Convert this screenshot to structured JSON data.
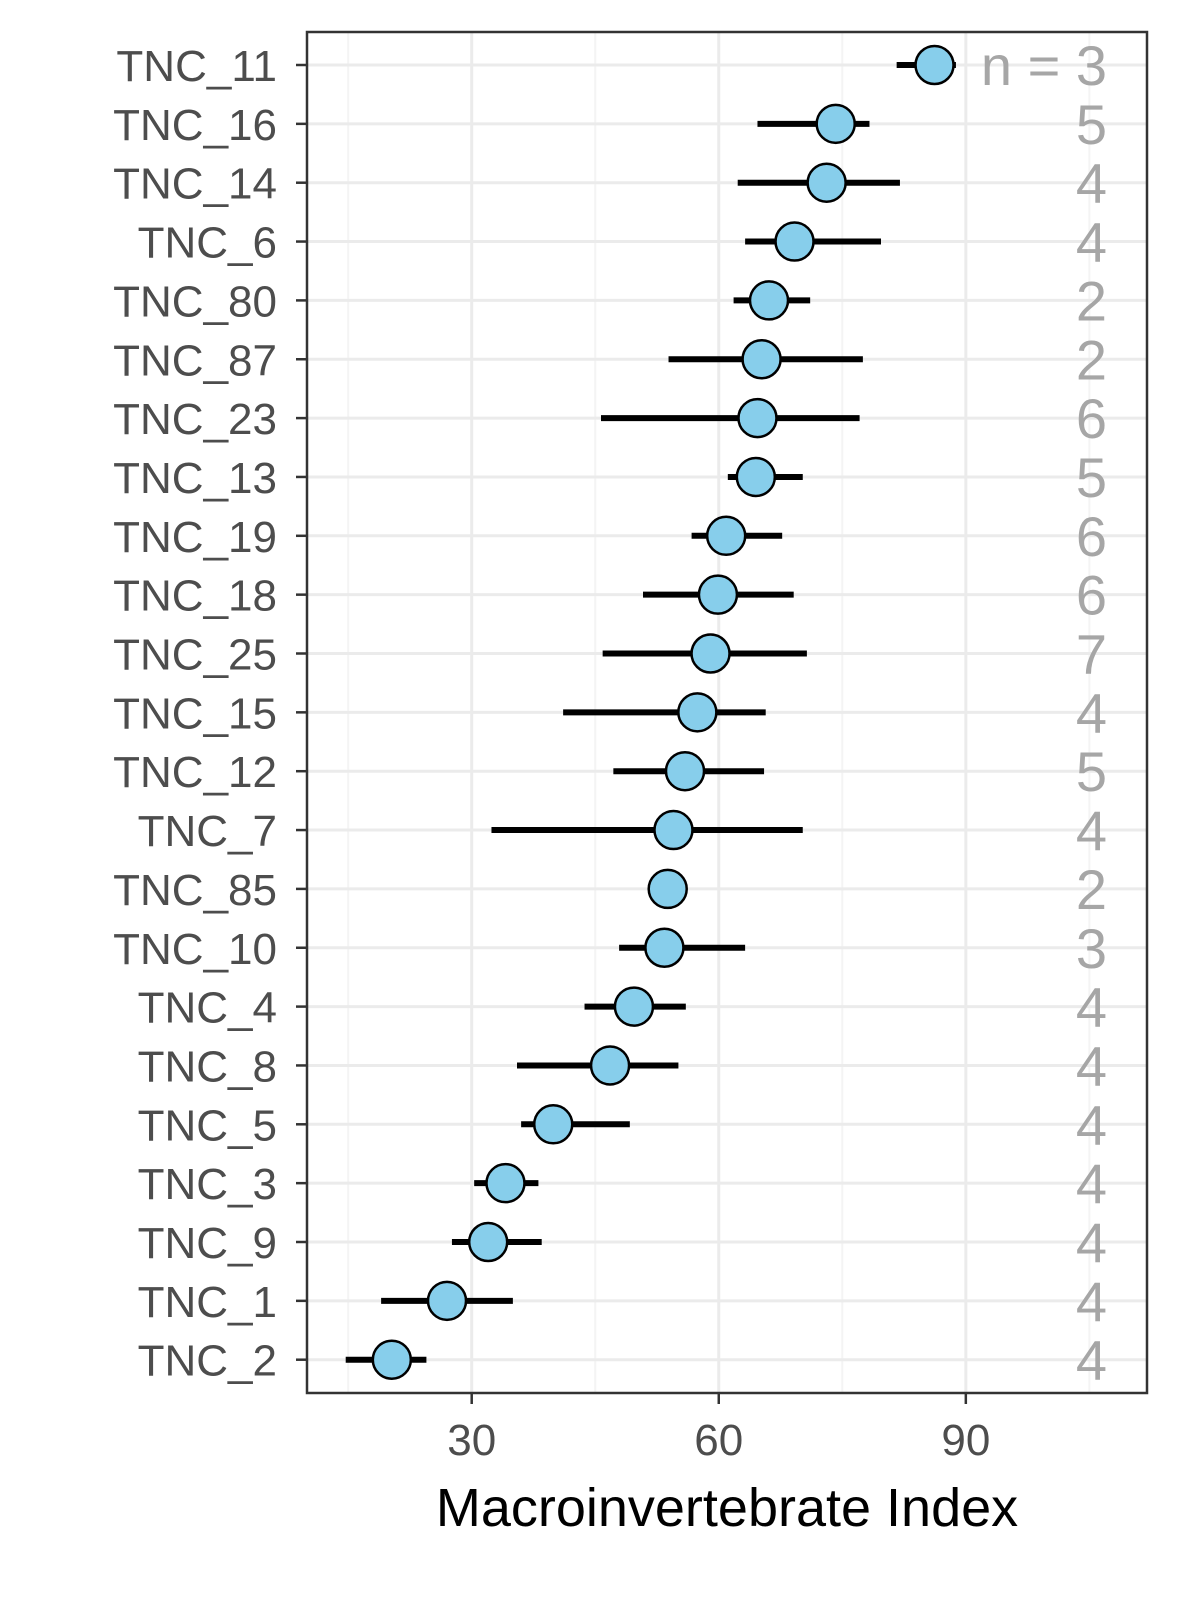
{
  "chart_data": {
    "type": "scatter",
    "orientation": "horizontal",
    "xlabel": "Macroinvertebrate Index",
    "ylabel": "",
    "xlim": [
      10,
      112
    ],
    "xticks": [
      30,
      60,
      90
    ],
    "grid": true,
    "n_header": "n = ",
    "categories": [
      "TNC_11",
      "TNC_16",
      "TNC_14",
      "TNC_6",
      "TNC_80",
      "TNC_87",
      "TNC_23",
      "TNC_13",
      "TNC_19",
      "TNC_18",
      "TNC_25",
      "TNC_15",
      "TNC_12",
      "TNC_7",
      "TNC_85",
      "TNC_10",
      "TNC_4",
      "TNC_8",
      "TNC_5",
      "TNC_3",
      "TNC_9",
      "TNC_1",
      "TNC_2"
    ],
    "points": [
      {
        "label": "TNC_11",
        "mean": 86.2,
        "low": 81.6,
        "high": 88.8,
        "n": "3"
      },
      {
        "label": "TNC_16",
        "mean": 74.2,
        "low": 64.7,
        "high": 78.3,
        "n": "5"
      },
      {
        "label": "TNC_14",
        "mean": 73.1,
        "low": 62.3,
        "high": 82.0,
        "n": "4"
      },
      {
        "label": "TNC_6",
        "mean": 69.2,
        "low": 63.2,
        "high": 79.7,
        "n": "4"
      },
      {
        "label": "TNC_80",
        "mean": 66.1,
        "low": 61.8,
        "high": 71.1,
        "n": "2"
      },
      {
        "label": "TNC_87",
        "mean": 65.2,
        "low": 53.9,
        "high": 77.5,
        "n": "2"
      },
      {
        "label": "TNC_23",
        "mean": 64.7,
        "low": 45.7,
        "high": 77.1,
        "n": "6"
      },
      {
        "label": "TNC_13",
        "mean": 64.5,
        "low": 61.1,
        "high": 70.2,
        "n": "5"
      },
      {
        "label": "TNC_19",
        "mean": 60.9,
        "low": 56.7,
        "high": 67.7,
        "n": "6"
      },
      {
        "label": "TNC_18",
        "mean": 59.9,
        "low": 50.8,
        "high": 69.1,
        "n": "6"
      },
      {
        "label": "TNC_25",
        "mean": 59.0,
        "low": 45.9,
        "high": 70.7,
        "n": "7"
      },
      {
        "label": "TNC_15",
        "mean": 57.4,
        "low": 41.1,
        "high": 65.7,
        "n": "4"
      },
      {
        "label": "TNC_12",
        "mean": 55.9,
        "low": 47.2,
        "high": 65.5,
        "n": "5"
      },
      {
        "label": "TNC_7",
        "mean": 54.5,
        "low": 32.4,
        "high": 70.2,
        "n": "4"
      },
      {
        "label": "TNC_85",
        "mean": 53.8,
        "low": 53.8,
        "high": 53.8,
        "n": "2"
      },
      {
        "label": "TNC_10",
        "mean": 53.4,
        "low": 47.9,
        "high": 63.2,
        "n": "3"
      },
      {
        "label": "TNC_4",
        "mean": 49.7,
        "low": 43.7,
        "high": 56.0,
        "n": "4"
      },
      {
        "label": "TNC_8",
        "mean": 46.8,
        "low": 35.5,
        "high": 55.1,
        "n": "4"
      },
      {
        "label": "TNC_5",
        "mean": 39.9,
        "low": 36.0,
        "high": 49.2,
        "n": "4"
      },
      {
        "label": "TNC_3",
        "mean": 34.1,
        "low": 30.3,
        "high": 38.1,
        "n": "4"
      },
      {
        "label": "TNC_9",
        "mean": 32.0,
        "low": 27.6,
        "high": 38.5,
        "n": "4"
      },
      {
        "label": "TNC_1",
        "mean": 27.0,
        "low": 19.0,
        "high": 35.0,
        "n": "4"
      },
      {
        "label": "TNC_2",
        "mean": 20.3,
        "low": 14.7,
        "high": 24.5,
        "n": "4"
      }
    ]
  },
  "colors": {
    "point_fill": "#87ceeb",
    "point_stroke": "#000000",
    "errorbar": "#000000",
    "grid_major": "#ebebeb",
    "grid_minor": "#f4f4f4",
    "panel_border": "#333333",
    "n_label": "#a6a6a6",
    "tick_text": "#4d4d4d"
  }
}
